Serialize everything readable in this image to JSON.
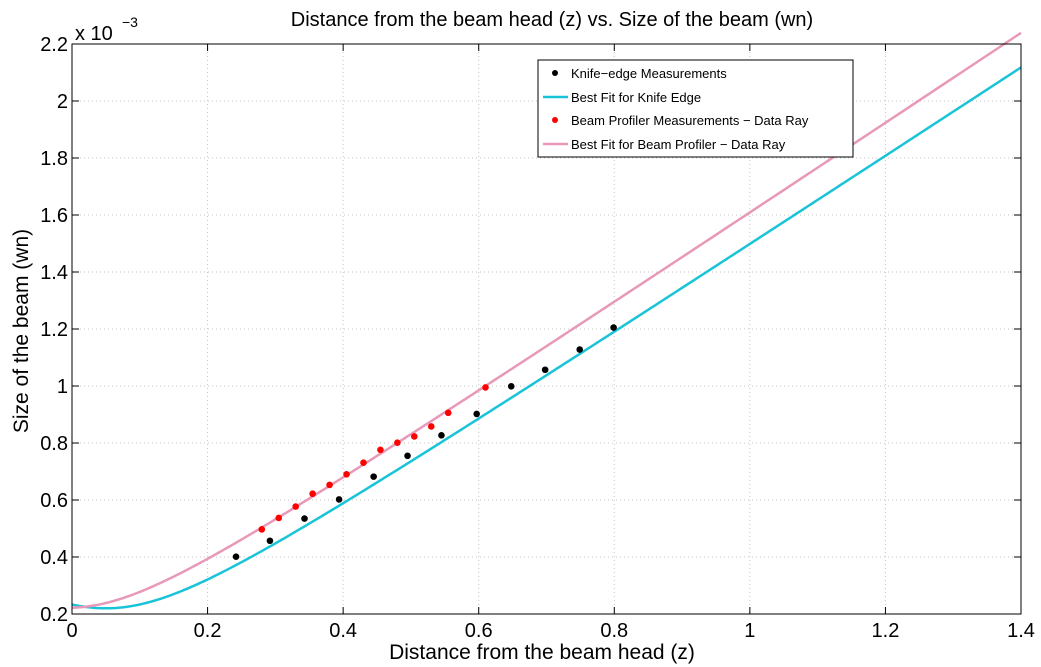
{
  "chart_data": {
    "type": "line",
    "title": "Distance from the beam head (z) vs. Size of the beam (wn)",
    "xlabel": "Distance from the beam head (z)",
    "ylabel": "Size of the beam (wn)",
    "y_multiplier": "x 10",
    "y_multiplier_exp": "−3",
    "xlim": [
      0,
      1.4
    ],
    "ylim": [
      0.2,
      2.2
    ],
    "xticks": [
      0,
      0.2,
      0.4,
      0.6,
      0.8,
      1,
      1.2,
      1.4
    ],
    "xtick_labels": [
      "0",
      "0.2",
      "0.4",
      "0.6",
      "0.8",
      "1",
      "1.2",
      "1.4"
    ],
    "yticks": [
      0.2,
      0.4,
      0.6,
      0.8,
      1,
      1.2,
      1.4,
      1.6,
      1.8,
      2,
      2.2
    ],
    "ytick_labels": [
      "0.2",
      "0.4",
      "0.6",
      "0.8",
      "1",
      "1.2",
      "1.4",
      "1.6",
      "1.8",
      "2",
      "2.2"
    ],
    "grid": true,
    "legend_position": "top-right",
    "series": [
      {
        "name": "Knife−edge Measurements",
        "kind": "scatter",
        "color": "#000000",
        "x": [
          0.242,
          0.292,
          0.343,
          0.394,
          0.445,
          0.495,
          0.545,
          0.597,
          0.648,
          0.698,
          0.749,
          0.799
        ],
        "y": [
          0.401,
          0.457,
          0.535,
          0.602,
          0.682,
          0.755,
          0.827,
          0.902,
          0.999,
          1.057,
          1.128,
          1.205
        ]
      },
      {
        "name": "Best Fit for Knife Edge",
        "kind": "curve",
        "color": "#19c3d8",
        "w0": 0.22,
        "z0": 0.05,
        "zr": 0.141
      },
      {
        "name": "Beam Profiler Measurements − Data Ray",
        "kind": "scatter",
        "color": "#ff0000",
        "x": [
          0.28,
          0.305,
          0.33,
          0.355,
          0.38,
          0.405,
          0.43,
          0.455,
          0.48,
          0.505,
          0.53,
          0.555,
          0.61
        ],
        "y": [
          0.497,
          0.537,
          0.577,
          0.622,
          0.653,
          0.69,
          0.731,
          0.776,
          0.801,
          0.823,
          0.858,
          0.906,
          0.995
        ]
      },
      {
        "name": "Best Fit for Beam Profiler − Data Ray",
        "kind": "curve",
        "color": "#e898b8",
        "w0": 0.222,
        "z0": -0.005,
        "zr": 0.14
      }
    ]
  }
}
